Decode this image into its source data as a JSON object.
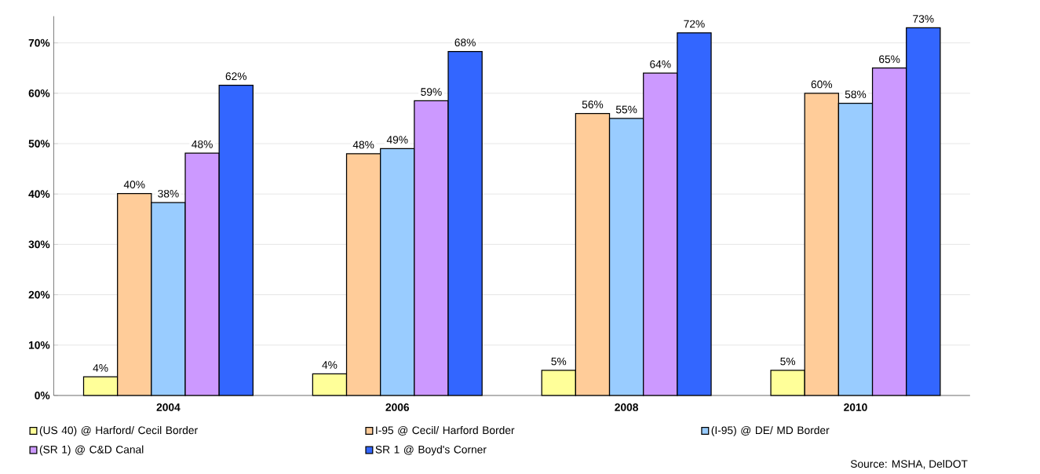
{
  "chart_data": {
    "type": "bar",
    "categories": [
      "2004",
      "2006",
      "2008",
      "2010"
    ],
    "series": [
      {
        "name": "(US 40) @ Harford/ Cecil Border",
        "color": "#ffff99",
        "values": [
          3.7,
          4.3,
          5,
          5
        ],
        "value_labels": [
          "4%",
          "4%",
          "5%",
          "5%"
        ]
      },
      {
        "name": "I-95 @ Cecil/ Harford Border",
        "color": "#ffcc99",
        "values": [
          40.1,
          48,
          56,
          60
        ],
        "value_labels": [
          "40%",
          "48%",
          "56%",
          "60%"
        ]
      },
      {
        "name": "(I-95) @ DE/ MD Border",
        "color": "#99ccff",
        "values": [
          38.3,
          49,
          55,
          58
        ],
        "value_labels": [
          "38%",
          "49%",
          "55%",
          "58%"
        ]
      },
      {
        "name": "(SR 1) @ C&D Canal",
        "color": "#cc99ff",
        "values": [
          48.1,
          58.5,
          64,
          65
        ],
        "value_labels": [
          "48%",
          "59%",
          "64%",
          "65%"
        ]
      },
      {
        "name": "SR 1 @ Boyd's Corner",
        "color": "#3366ff",
        "values": [
          61.6,
          68.3,
          72,
          73
        ],
        "value_labels": [
          "62%",
          "68%",
          "72%",
          "73%"
        ]
      }
    ],
    "ylim": [
      0,
      75.3
    ],
    "yticks": [
      {
        "value": 0,
        "label": "0%"
      },
      {
        "value": 10,
        "label": "10%"
      },
      {
        "value": 20,
        "label": "20%"
      },
      {
        "value": 30,
        "label": "30%"
      },
      {
        "value": 40,
        "label": "40%"
      },
      {
        "value": 50,
        "label": "50%"
      },
      {
        "value": 60,
        "label": "60%"
      },
      {
        "value": 70,
        "label": "70%"
      }
    ],
    "grid": "y",
    "legend": "bottom",
    "annotations": [
      "Source: MSHA, DelDOT"
    ]
  }
}
